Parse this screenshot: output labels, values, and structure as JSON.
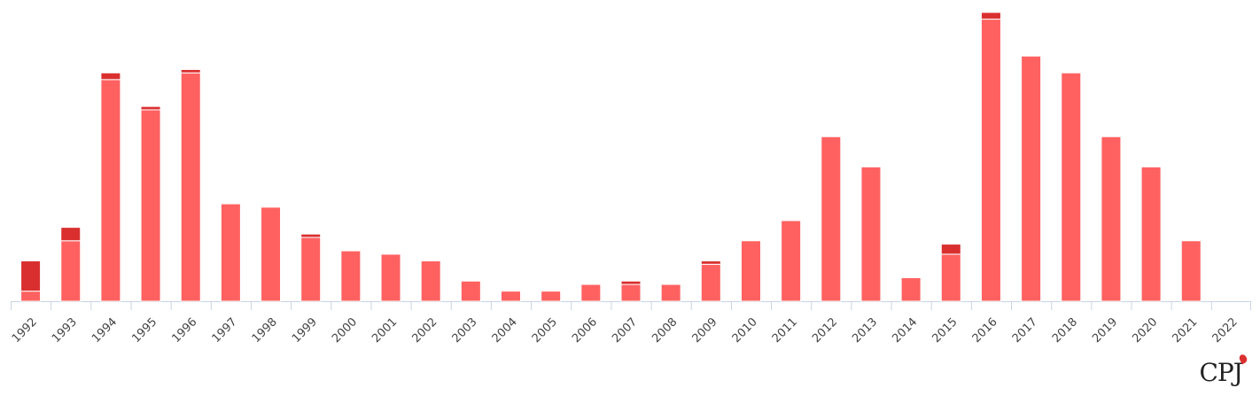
{
  "brand": {
    "logo_text": "CPJ",
    "flame_color": "#d9302f"
  },
  "colors": {
    "primary": "#ff6161",
    "secondary": "#d9302f",
    "axis": "#c8d4e3"
  },
  "chart_data": {
    "type": "bar",
    "stacked": true,
    "categories": [
      "1992",
      "1993",
      "1994",
      "1995",
      "1996",
      "1997",
      "1998",
      "1999",
      "2000",
      "2001",
      "2002",
      "2003",
      "2004",
      "2005",
      "2006",
      "2007",
      "2008",
      "2009",
      "2010",
      "2011",
      "2012",
      "2013",
      "2014",
      "2015",
      "2016",
      "2017",
      "2018",
      "2019",
      "2020",
      "2021",
      "2022"
    ],
    "series": [
      {
        "name": "primary",
        "color": "#ff6161",
        "values": [
          3,
          18,
          66,
          57,
          68,
          29,
          28,
          19,
          15,
          14,
          12,
          6,
          3,
          3,
          5,
          5,
          5,
          11,
          18,
          24,
          49,
          40,
          7,
          14,
          84,
          73,
          68,
          49,
          40,
          18,
          0
        ]
      },
      {
        "name": "secondary",
        "color": "#d9302f",
        "values": [
          9,
          4,
          2,
          1,
          1,
          0,
          0,
          1,
          0,
          0,
          0,
          0,
          0,
          0,
          0,
          1,
          0,
          1,
          0,
          0,
          0,
          0,
          0,
          3,
          2,
          0,
          0,
          0,
          0,
          0,
          0
        ]
      }
    ],
    "title": "",
    "xlabel": "",
    "ylabel": "",
    "ylim": [
      0,
      86
    ],
    "legend": "none",
    "grid": false
  }
}
